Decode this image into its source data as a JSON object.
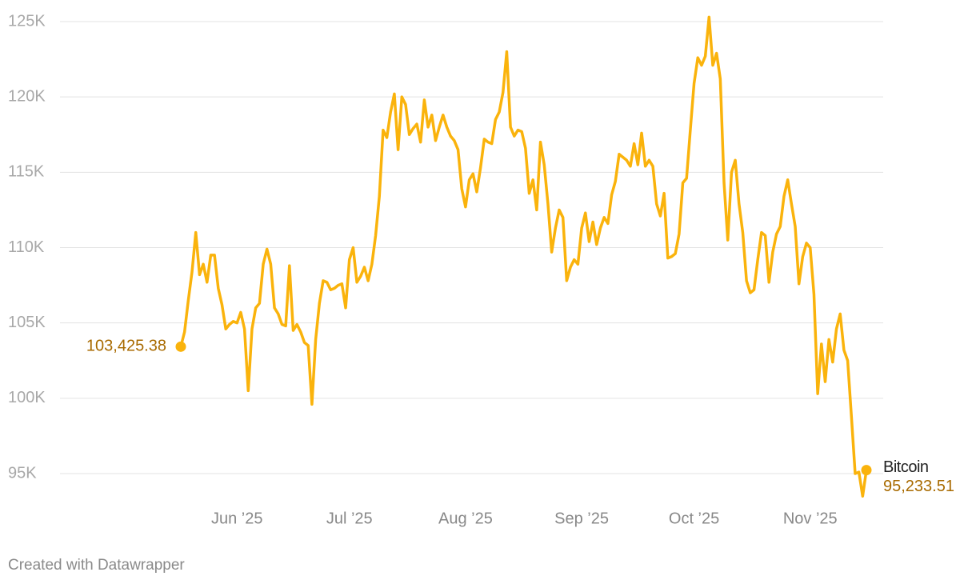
{
  "chart_data": {
    "type": "line",
    "credit": "Created with Datawrapper",
    "ylim": [
      95000,
      125000
    ],
    "yticks": [
      {
        "value": 95000,
        "label": "95K"
      },
      {
        "value": 100000,
        "label": "100K"
      },
      {
        "value": 105000,
        "label": "105K"
      },
      {
        "value": 110000,
        "label": "110K"
      },
      {
        "value": 115000,
        "label": "115K"
      },
      {
        "value": 120000,
        "label": "120K"
      },
      {
        "value": 125000,
        "label": "125K"
      }
    ],
    "grid": true,
    "categories": [
      null,
      null,
      null,
      null,
      null,
      null,
      null,
      null,
      null,
      null,
      null,
      null,
      null,
      null,
      null,
      "Jun ’25",
      null,
      null,
      null,
      null,
      null,
      null,
      null,
      null,
      null,
      null,
      null,
      null,
      null,
      null,
      null,
      null,
      null,
      null,
      null,
      null,
      null,
      null,
      null,
      null,
      null,
      null,
      null,
      null,
      null,
      "Jul ’25",
      null,
      null,
      null,
      null,
      null,
      null,
      null,
      null,
      null,
      null,
      null,
      null,
      null,
      null,
      null,
      null,
      null,
      null,
      null,
      null,
      null,
      null,
      null,
      null,
      null,
      null,
      null,
      null,
      null,
      null,
      "Aug ’25",
      null,
      null,
      null,
      null,
      null,
      null,
      null,
      null,
      null,
      null,
      null,
      null,
      null,
      null,
      null,
      null,
      null,
      null,
      null,
      null,
      null,
      null,
      null,
      null,
      null,
      null,
      null,
      null,
      null,
      null,
      "Sep ’25",
      null,
      null,
      null,
      null,
      null,
      null,
      null,
      null,
      null,
      null,
      null,
      null,
      null,
      null,
      null,
      null,
      null,
      null,
      null,
      null,
      null,
      null,
      null,
      null,
      null,
      null,
      null,
      null,
      null,
      "Oct ’25",
      null,
      null,
      null,
      null,
      null,
      null,
      null,
      null,
      null,
      null,
      null,
      null,
      null,
      null,
      null,
      null,
      null,
      null,
      null,
      null,
      null,
      null,
      null,
      null,
      null,
      null,
      null,
      null,
      null,
      null,
      "Nov ’25",
      null,
      null,
      null,
      null,
      null,
      null,
      null,
      null,
      null,
      null,
      null,
      null,
      null,
      null,
      null
    ],
    "series": [
      {
        "name": "Bitcoin",
        "color": "#fab30c",
        "values": [
          103425.38,
          104400,
          106500,
          108400,
          111000,
          108200,
          108900,
          107700,
          109500,
          109500,
          107300,
          106200,
          104600,
          104900,
          105100,
          105000,
          105700,
          104600,
          100500,
          104600,
          106000,
          106300,
          108900,
          109900,
          108900,
          106000,
          105600,
          104900,
          104800,
          108800,
          104500,
          104900,
          104400,
          103700,
          103500,
          99600,
          103900,
          106300,
          107800,
          107700,
          107200,
          107300,
          107500,
          107600,
          106000,
          109200,
          110000,
          107700,
          108100,
          108700,
          107800,
          108900,
          110800,
          113400,
          117800,
          117300,
          119000,
          120200,
          116500,
          120000,
          119500,
          117500,
          117900,
          118200,
          117000,
          119800,
          118000,
          118800,
          117100,
          118000,
          118800,
          118000,
          117400,
          117100,
          116500,
          113900,
          112700,
          114500,
          114900,
          113700,
          115300,
          117200,
          117000,
          116900,
          118500,
          119000,
          120300,
          123000,
          118000,
          117400,
          117800,
          117700,
          116600,
          113600,
          114500,
          112500,
          117000,
          115500,
          112900,
          109700,
          111300,
          112500,
          112000,
          107800,
          108700,
          109200,
          108900,
          111300,
          112300,
          110400,
          111700,
          110200,
          111300,
          112000,
          111600,
          113500,
          114400,
          116200,
          116000,
          115800,
          115400,
          116900,
          115500,
          117600,
          115400,
          115800,
          115400,
          112900,
          112100,
          113600,
          109300,
          109400,
          109600,
          110900,
          114300,
          114600,
          117800,
          120900,
          122600,
          122100,
          122700,
          125300,
          122100,
          122900,
          121200,
          114300,
          110500,
          115000,
          115800,
          112900,
          111000,
          107800,
          107000,
          107200,
          109200,
          111000,
          110800,
          107700,
          109700,
          110900,
          111400,
          113400,
          114500,
          112900,
          111400,
          107600,
          109400,
          110300,
          110000,
          106900,
          100300,
          103600,
          101100,
          103900,
          102400,
          104600,
          105600,
          103200,
          102500,
          98800,
          95000,
          95100,
          93500,
          95233.51
        ],
        "value_labels": [
          "103,425.38",
          null,
          null,
          null,
          null,
          null,
          null,
          null,
          null,
          null,
          null,
          null,
          null,
          null,
          null,
          null,
          null,
          null,
          null,
          null,
          null,
          null,
          null,
          null,
          null,
          null,
          null,
          null,
          null,
          null,
          null,
          null,
          null,
          null,
          null,
          null,
          null,
          null,
          null,
          null,
          null,
          null,
          null,
          null,
          null,
          null,
          null,
          null,
          null,
          null,
          null,
          null,
          null,
          null,
          null,
          null,
          null,
          null,
          null,
          null,
          null,
          null,
          null,
          null,
          null,
          null,
          null,
          null,
          null,
          null,
          null,
          null,
          null,
          null,
          null,
          null,
          null,
          null,
          null,
          null,
          null,
          null,
          null,
          null,
          null,
          null,
          null,
          null,
          null,
          null,
          null,
          null,
          null,
          null,
          null,
          null,
          null,
          null,
          null,
          null,
          null,
          null,
          null,
          null,
          null,
          null,
          null,
          null,
          null,
          null,
          null,
          null,
          null,
          null,
          null,
          null,
          null,
          null,
          null,
          null,
          null,
          null,
          null,
          null,
          null,
          null,
          null,
          null,
          null,
          null,
          null,
          null,
          null,
          null,
          null,
          null,
          null,
          null,
          null,
          null,
          null,
          null,
          null,
          null,
          null,
          null,
          null,
          null,
          null,
          null,
          null,
          null,
          null,
          null,
          null,
          null,
          null,
          null,
          null,
          null,
          null,
          null,
          null,
          null,
          null,
          null,
          null,
          null,
          null,
          null,
          null,
          null,
          null,
          null,
          null,
          null,
          null,
          null,
          null,
          null,
          null,
          null,
          null,
          "95,233.51"
        ]
      }
    ]
  }
}
